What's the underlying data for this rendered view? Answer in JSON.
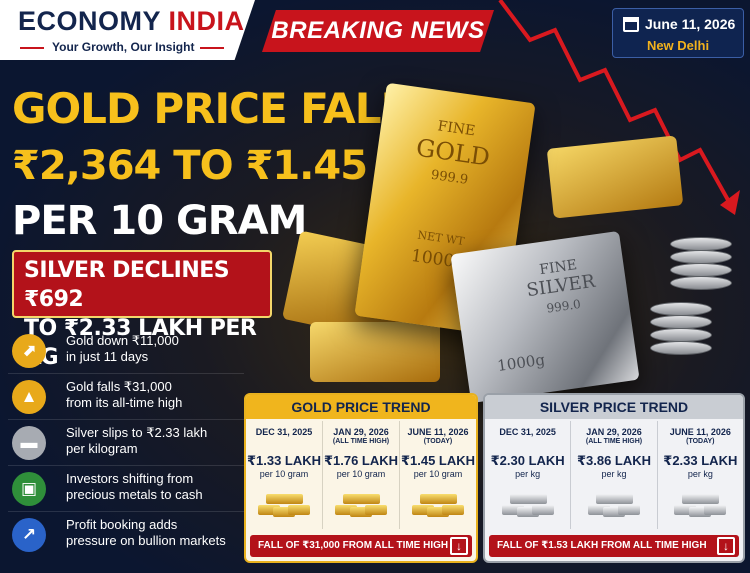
{
  "brand": {
    "name_part1": "ECONOMY ",
    "name_part2": "INDIA",
    "tagline": "Your Growth, Our Insight"
  },
  "breaking": "BREAKING NEWS",
  "dateline": {
    "date": "June 11, 2026",
    "city": "New Delhi",
    "icon": "calendar-icon"
  },
  "headline": {
    "line1": "GOLD PRICE FALLS",
    "line2": "₹2,364 TO ₹1.45 LAKH",
    "line3": "PER 10 GRAM"
  },
  "silver_headline": {
    "line1": "SILVER DECLINES ₹692",
    "line2": "TO ₹2.33 LAKH PER KG"
  },
  "points": [
    {
      "icon": "chart-up-icon",
      "color": "#e8a91a",
      "line1": "Gold down ₹11,000",
      "line2": "in just 11 days"
    },
    {
      "icon": "mountain-peak-icon",
      "color": "#e8a91a",
      "line1": "Gold falls ₹31,000",
      "line2": "from its all-time high"
    },
    {
      "icon": "silver-bars-icon",
      "color": "#a7abb2",
      "line1": "Silver slips to ₹2.33 lakh",
      "line2": "per kilogram"
    },
    {
      "icon": "cash-icon",
      "color": "#2f8f3a",
      "line1": "Investors shifting from",
      "line2": "precious metals to cash"
    },
    {
      "icon": "trend-up-icon",
      "color": "#2a63c9",
      "line1": "Profit booking adds",
      "line2": "pressure on bullion markets"
    }
  ],
  "hero": {
    "gold_bar": {
      "line1": "FINE",
      "line2": "GOLD",
      "line3": "999.9",
      "line4": "NET WT",
      "line5": "1000g"
    },
    "silver_bar": {
      "line1": "FINE",
      "line2": "SILVER",
      "line3": "999.0",
      "line4": "1000g"
    }
  },
  "gold_trend": {
    "title": "GOLD PRICE TREND",
    "columns": [
      {
        "date": "DEC 31, 2025",
        "sub": "",
        "value": "₹1.33 LAKH",
        "unit": "per 10 gram"
      },
      {
        "date": "JAN 29, 2026",
        "sub": "(ALL TIME HIGH)",
        "value": "₹1.76 LAKH",
        "unit": "per 10 gram"
      },
      {
        "date": "JUNE 11, 2026",
        "sub": "(TODAY)",
        "value": "₹1.45 LAKH",
        "unit": "per 10 gram"
      }
    ],
    "fall": "FALL OF ₹31,000 FROM ALL TIME HIGH"
  },
  "silver_trend": {
    "title": "SILVER PRICE TREND",
    "columns": [
      {
        "date": "DEC 31, 2025",
        "sub": "",
        "value": "₹2.30 LAKH",
        "unit": "per kg"
      },
      {
        "date": "JAN 29, 2026",
        "sub": "(ALL TIME HIGH)",
        "value": "₹3.86 LAKH",
        "unit": "per kg"
      },
      {
        "date": "JUNE 11, 2026",
        "sub": "(TODAY)",
        "value": "₹2.33 LAKH",
        "unit": "per kg"
      }
    ],
    "fall": "FALL OF ₹1.53 LAKH FROM ALL TIME HIGH"
  },
  "colors": {
    "navy": "#13254d",
    "red": "#c8141c",
    "gold": "#f7c01c"
  }
}
